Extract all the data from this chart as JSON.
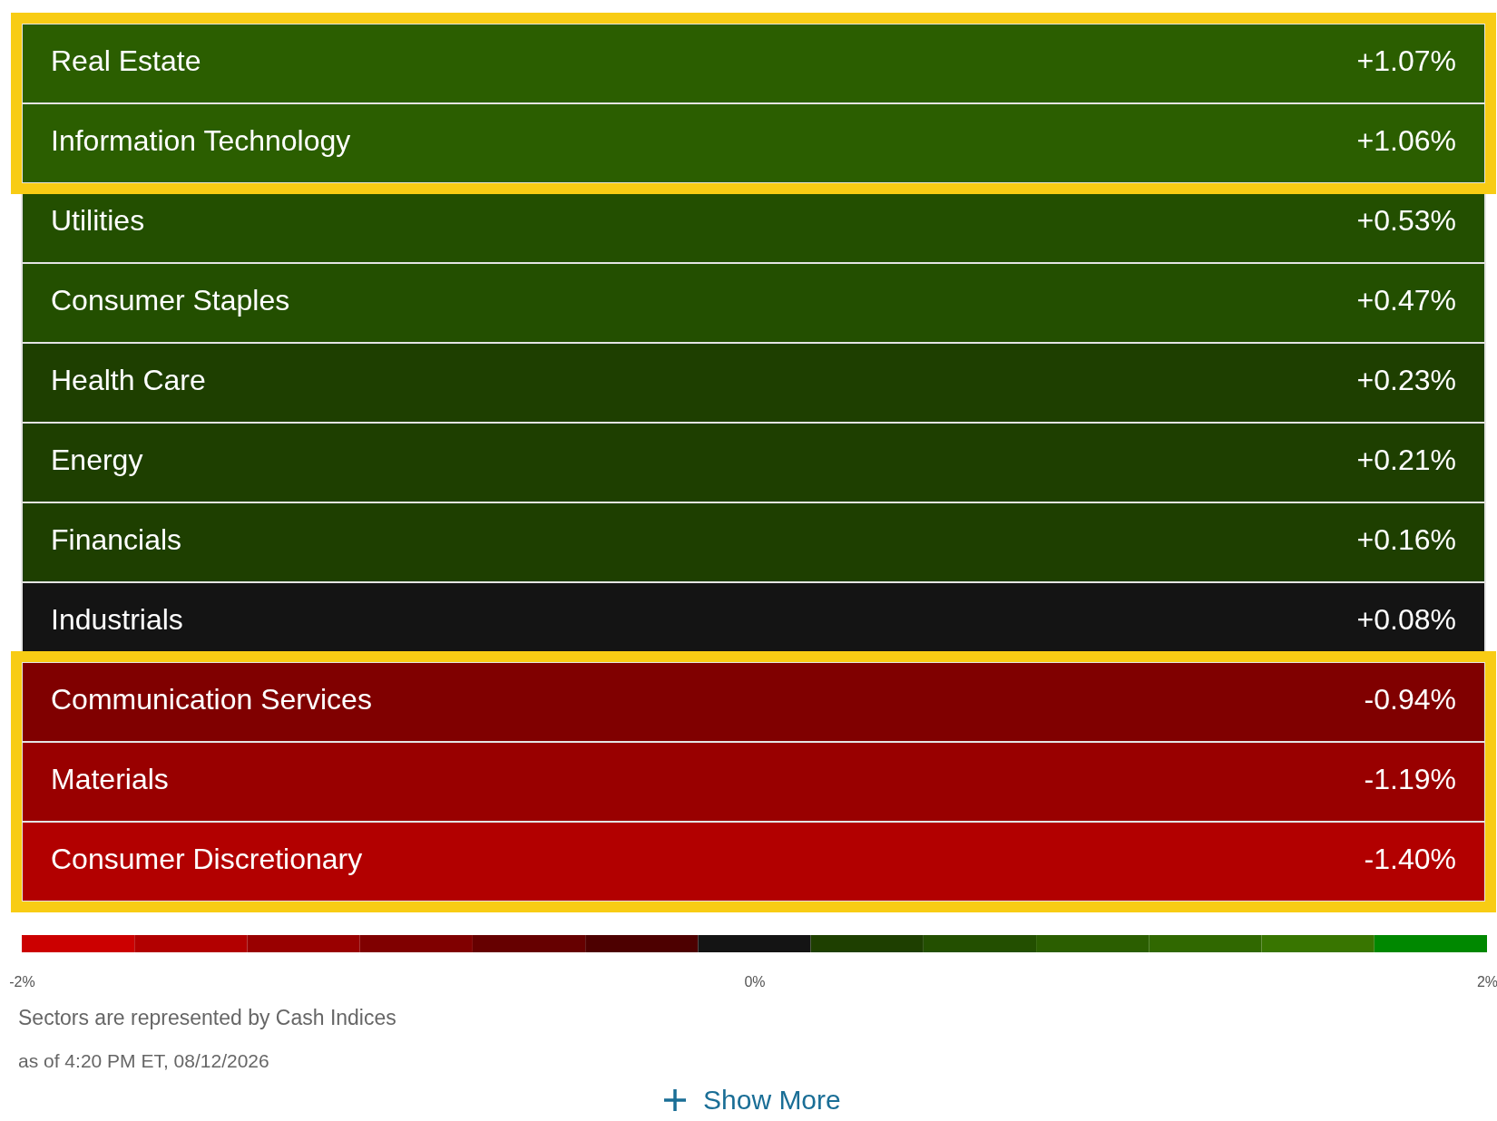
{
  "chart_data": {
    "type": "heatmap",
    "categories": [
      null
    ],
    "y_categories": [
      "Real Estate",
      "Information Technology",
      "Utilities",
      "Consumer Staples",
      "Health Care",
      "Energy",
      "Financials",
      "Industrials",
      "Communication Services",
      "Materials",
      "Consumer Discretionary"
    ],
    "cells": [
      [
        1.07
      ],
      [
        1.06
      ],
      [
        0.53
      ],
      [
        0.47
      ],
      [
        0.23
      ],
      [
        0.21
      ],
      [
        0.16
      ],
      [
        0.08
      ],
      [
        -0.94
      ],
      [
        -1.19
      ],
      [
        -1.4
      ]
    ],
    "cell_labels": [
      [
        "+1.07%"
      ],
      [
        "+1.06%"
      ],
      [
        "+0.53%"
      ],
      [
        "+0.47%"
      ],
      [
        "+0.23%"
      ],
      [
        "+0.21%"
      ],
      [
        "+0.16%"
      ],
      [
        "+0.08%"
      ],
      [
        "-0.94%"
      ],
      [
        "-1.19%"
      ],
      [
        "-1.40%"
      ]
    ],
    "clim": [
      -2,
      2
    ],
    "cticks": [
      {
        "value": -2,
        "label": "-2%"
      },
      {
        "value": 0,
        "label": "0%"
      },
      {
        "value": 2,
        "label": "2%"
      }
    ],
    "annotations": [
      "Sectors are represented by Cash Indices",
      "as of 4:20 PM ET, 08/12/2026",
      "Show More"
    ]
  }
}
